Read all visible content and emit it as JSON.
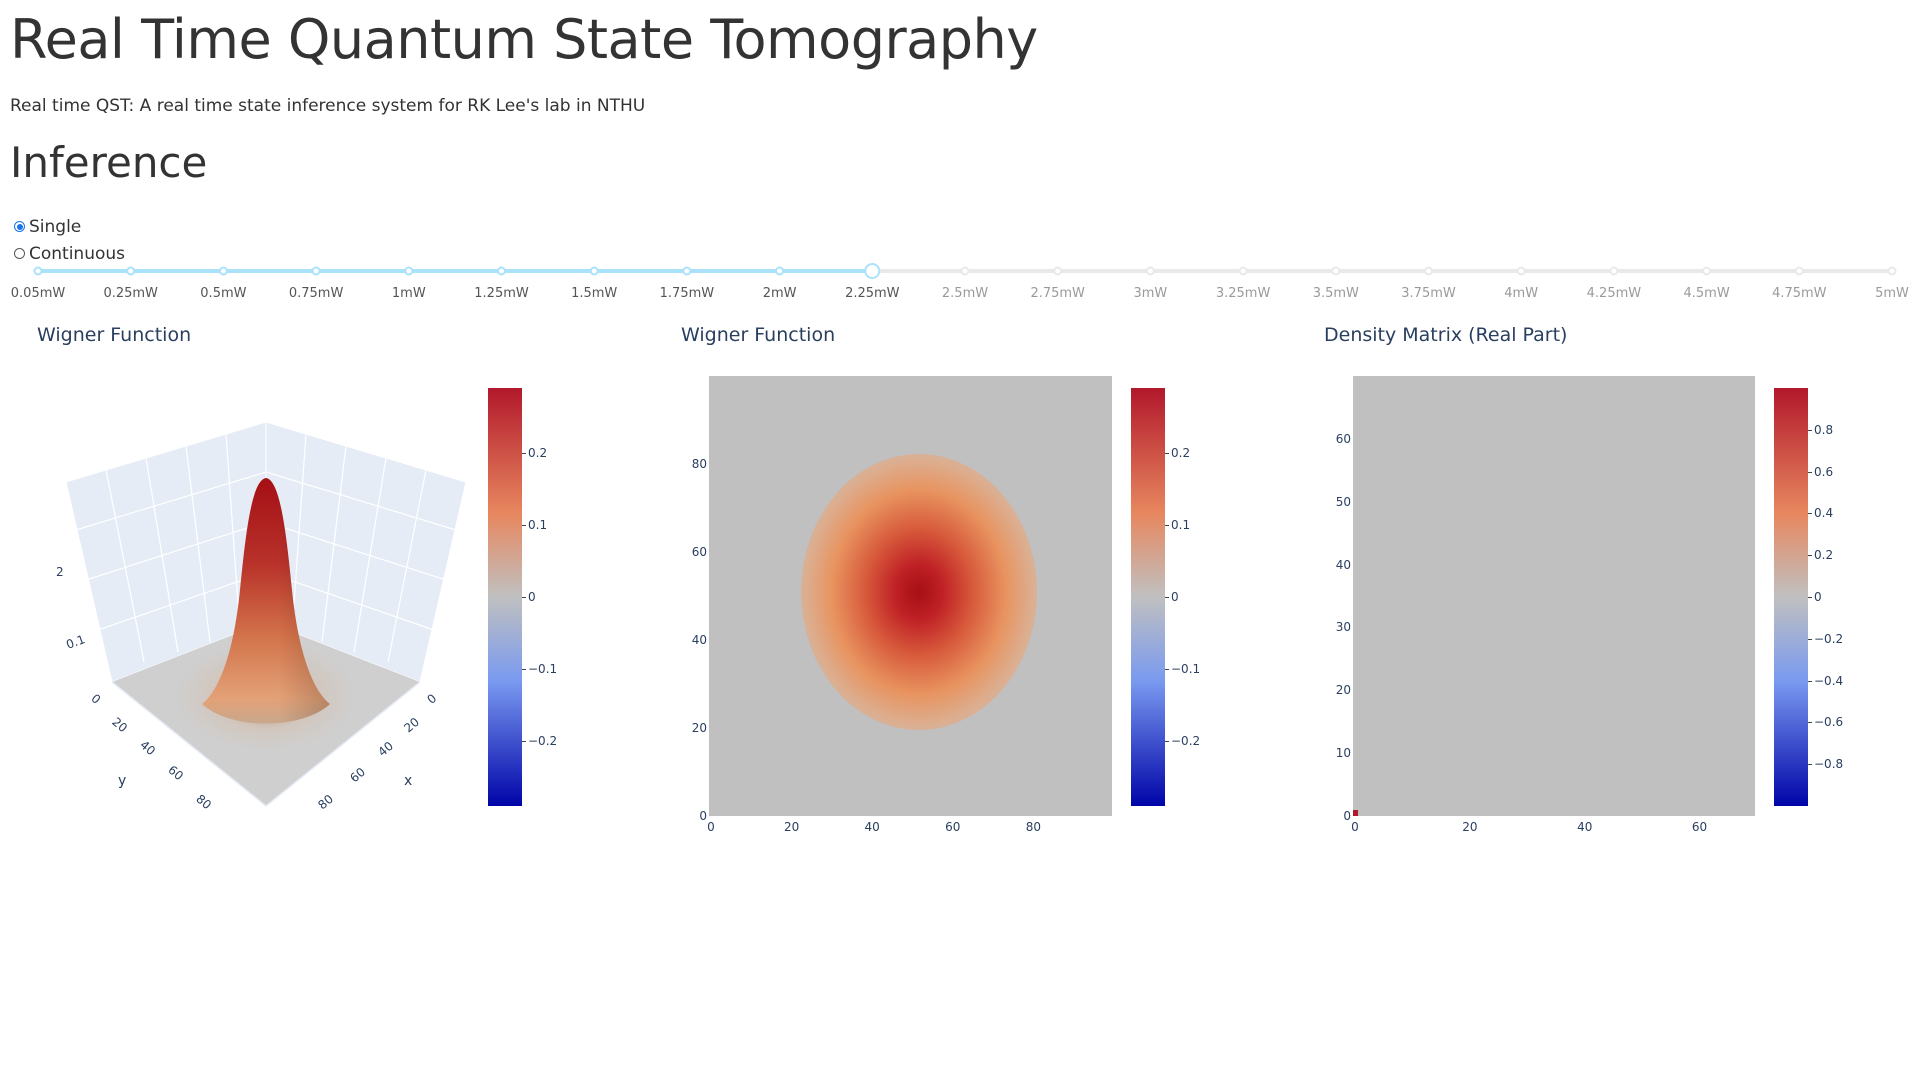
{
  "page": {
    "title": "Real Time Quantum State Tomography",
    "subtitle": "Real time QST: A real time state inference system for RK Lee's lab in NTHU",
    "section_title": "Inference"
  },
  "mode": {
    "options": [
      {
        "label": "Single",
        "checked": true
      },
      {
        "label": "Continuous",
        "checked": false
      }
    ]
  },
  "slider": {
    "marks": [
      "0.05mW",
      "0.25mW",
      "0.5mW",
      "0.75mW",
      "1mW",
      "1.25mW",
      "1.5mW",
      "1.75mW",
      "2mW",
      "2.25mW",
      "2.5mW",
      "2.75mW",
      "3mW",
      "3.25mW",
      "3.5mW",
      "3.75mW",
      "4mW",
      "4.25mW",
      "4.5mW",
      "4.75mW",
      "5mW"
    ],
    "selected_index": 9,
    "selected_value": "2.25mW",
    "track_color": "#e9e9e9",
    "active_color": "#abe2fb"
  },
  "colors": {
    "colorscale": [
      "#0004a8",
      "#7a9af0",
      "#c0c0c0",
      "#e7875f",
      "#b2182b"
    ]
  },
  "panels": [
    {
      "title": "Wigner Function",
      "type": "surface3d",
      "x_ticks": [
        "0",
        "20",
        "40",
        "60",
        "80"
      ],
      "y_ticks": [
        "0",
        "20",
        "40",
        "60",
        "80"
      ],
      "z_ticks": [
        "0.1",
        "2"
      ],
      "x_title": "x",
      "y_title": "y",
      "colorbar_ticks": [
        "0.2",
        "0.1",
        "0",
        "−0.1",
        "−0.2"
      ]
    },
    {
      "title": "Wigner Function",
      "type": "heatmap",
      "x_ticks": [
        "0",
        "20",
        "40",
        "60",
        "80"
      ],
      "y_ticks": [
        "0",
        "20",
        "40",
        "60",
        "80"
      ],
      "colorbar_ticks": [
        "0.2",
        "0.1",
        "0",
        "−0.1",
        "−0.2"
      ]
    },
    {
      "title": "Density Matrix (Real Part)",
      "type": "heatmap",
      "x_ticks": [
        "0",
        "20",
        "40",
        "60"
      ],
      "y_ticks": [
        "0",
        "10",
        "20",
        "30",
        "40",
        "50",
        "60"
      ],
      "colorbar_ticks": [
        "0.8",
        "0.6",
        "0.4",
        "0.2",
        "0",
        "−0.2",
        "−0.4",
        "−0.6",
        "−0.8"
      ]
    }
  ],
  "chart_data": [
    {
      "type": "heatmap",
      "title": "Wigner Function",
      "subtype": "surface",
      "x_range": [
        0,
        100
      ],
      "y_range": [
        0,
        100
      ],
      "peak": {
        "x": 50,
        "y": 50,
        "value": 0.29
      },
      "colorscale_range": [
        -0.29,
        0.29
      ]
    },
    {
      "type": "heatmap",
      "title": "Wigner Function",
      "x_range": [
        0,
        100
      ],
      "y_range": [
        0,
        100
      ],
      "peak": {
        "x": 50,
        "y": 50,
        "value": 0.29
      },
      "colorscale_range": [
        -0.29,
        0.29
      ]
    },
    {
      "type": "heatmap",
      "title": "Density Matrix (Real Part)",
      "x_range": [
        0,
        70
      ],
      "y_range": [
        0,
        70
      ],
      "nonzero_cells": [
        {
          "x": 0,
          "y": 0,
          "value": 1.0
        }
      ],
      "colorscale_range": [
        -1,
        1
      ]
    }
  ]
}
